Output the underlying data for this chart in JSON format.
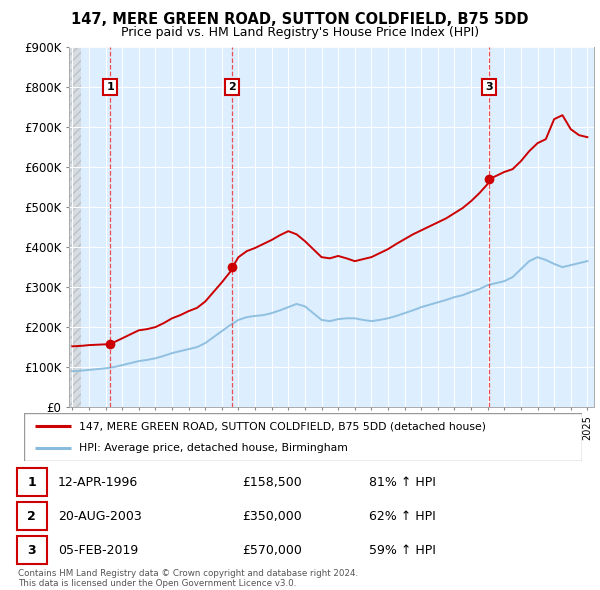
{
  "title": "147, MERE GREEN ROAD, SUTTON COLDFIELD, B75 5DD",
  "subtitle": "Price paid vs. HM Land Registry's House Price Index (HPI)",
  "ylim": [
    0,
    900000
  ],
  "yticks": [
    0,
    100000,
    200000,
    300000,
    400000,
    500000,
    600000,
    700000,
    800000,
    900000
  ],
  "ytick_labels": [
    "£0",
    "£100K",
    "£200K",
    "£300K",
    "£400K",
    "£500K",
    "£600K",
    "£700K",
    "£800K",
    "£900K"
  ],
  "xlim_start": 1993.8,
  "xlim_end": 2025.4,
  "sale_dates": [
    1996.28,
    2003.64,
    2019.09
  ],
  "sale_prices": [
    158500,
    350000,
    570000
  ],
  "sale_labels": [
    "1",
    "2",
    "3"
  ],
  "sale_date_strs": [
    "12-APR-1996",
    "20-AUG-2003",
    "05-FEB-2019"
  ],
  "sale_price_strs": [
    "£158,500",
    "£350,000",
    "£570,000"
  ],
  "sale_hpi_strs": [
    "81% ↑ HPI",
    "62% ↑ HPI",
    "59% ↑ HPI"
  ],
  "red_line_color": "#cc0000",
  "blue_line_color": "#88bbdd",
  "legend_line1": "147, MERE GREEN ROAD, SUTTON COLDFIELD, B75 5DD (detached house)",
  "legend_line2": "HPI: Average price, detached house, Birmingham",
  "footer_text": "Contains HM Land Registry data © Crown copyright and database right 2024.\nThis data is licensed under the Open Government Licence v3.0.",
  "hpi_t": [
    1994.0,
    1994.5,
    1995.0,
    1995.5,
    1996.0,
    1996.5,
    1997.0,
    1997.5,
    1998.0,
    1998.5,
    1999.0,
    1999.5,
    2000.0,
    2000.5,
    2001.0,
    2001.5,
    2002.0,
    2002.5,
    2003.0,
    2003.5,
    2004.0,
    2004.5,
    2005.0,
    2005.5,
    2006.0,
    2006.5,
    2007.0,
    2007.5,
    2008.0,
    2008.5,
    2009.0,
    2009.5,
    2010.0,
    2010.5,
    2011.0,
    2011.5,
    2012.0,
    2012.5,
    2013.0,
    2013.5,
    2014.0,
    2014.5,
    2015.0,
    2015.5,
    2016.0,
    2016.5,
    2017.0,
    2017.5,
    2018.0,
    2018.5,
    2019.0,
    2019.5,
    2020.0,
    2020.5,
    2021.0,
    2021.5,
    2022.0,
    2022.5,
    2023.0,
    2023.5,
    2024.0,
    2024.5,
    2025.0
  ],
  "hpi_v": [
    90000,
    91000,
    93000,
    95000,
    97000,
    100000,
    105000,
    110000,
    115000,
    118000,
    122000,
    128000,
    135000,
    140000,
    145000,
    150000,
    160000,
    175000,
    190000,
    205000,
    218000,
    225000,
    228000,
    230000,
    235000,
    242000,
    250000,
    258000,
    252000,
    235000,
    218000,
    215000,
    220000,
    222000,
    222000,
    218000,
    215000,
    218000,
    222000,
    228000,
    235000,
    242000,
    250000,
    256000,
    262000,
    268000,
    275000,
    280000,
    288000,
    295000,
    305000,
    310000,
    315000,
    325000,
    345000,
    365000,
    375000,
    368000,
    358000,
    350000,
    355000,
    360000,
    365000
  ],
  "red_t": [
    1994.0,
    1994.5,
    1995.0,
    1995.5,
    1996.0,
    1996.28,
    1996.5,
    1997.0,
    1997.5,
    1998.0,
    1998.5,
    1999.0,
    1999.5,
    2000.0,
    2000.5,
    2001.0,
    2001.5,
    2002.0,
    2002.5,
    2003.0,
    2003.5,
    2003.64,
    2004.0,
    2004.5,
    2005.0,
    2005.5,
    2006.0,
    2006.5,
    2007.0,
    2007.5,
    2008.0,
    2008.5,
    2009.0,
    2009.5,
    2010.0,
    2010.5,
    2011.0,
    2011.5,
    2012.0,
    2012.5,
    2013.0,
    2013.5,
    2014.0,
    2014.5,
    2015.0,
    2015.5,
    2016.0,
    2016.5,
    2017.0,
    2017.5,
    2018.0,
    2018.5,
    2019.0,
    2019.09,
    2019.5,
    2020.0,
    2020.5,
    2021.0,
    2021.5,
    2022.0,
    2022.5,
    2023.0,
    2023.5,
    2024.0,
    2024.5,
    2025.0
  ],
  "red_v": [
    152000,
    153000,
    155000,
    156000,
    157000,
    158500,
    162000,
    172000,
    182000,
    192000,
    195000,
    200000,
    210000,
    222000,
    230000,
    240000,
    248000,
    264000,
    288000,
    312000,
    338000,
    350000,
    375000,
    390000,
    398000,
    408000,
    418000,
    430000,
    440000,
    432000,
    415000,
    395000,
    375000,
    372000,
    378000,
    372000,
    365000,
    370000,
    375000,
    385000,
    395000,
    408000,
    420000,
    432000,
    442000,
    452000,
    462000,
    472000,
    485000,
    498000,
    515000,
    535000,
    558000,
    570000,
    578000,
    588000,
    595000,
    615000,
    640000,
    660000,
    670000,
    720000,
    730000,
    695000,
    680000,
    675000
  ]
}
